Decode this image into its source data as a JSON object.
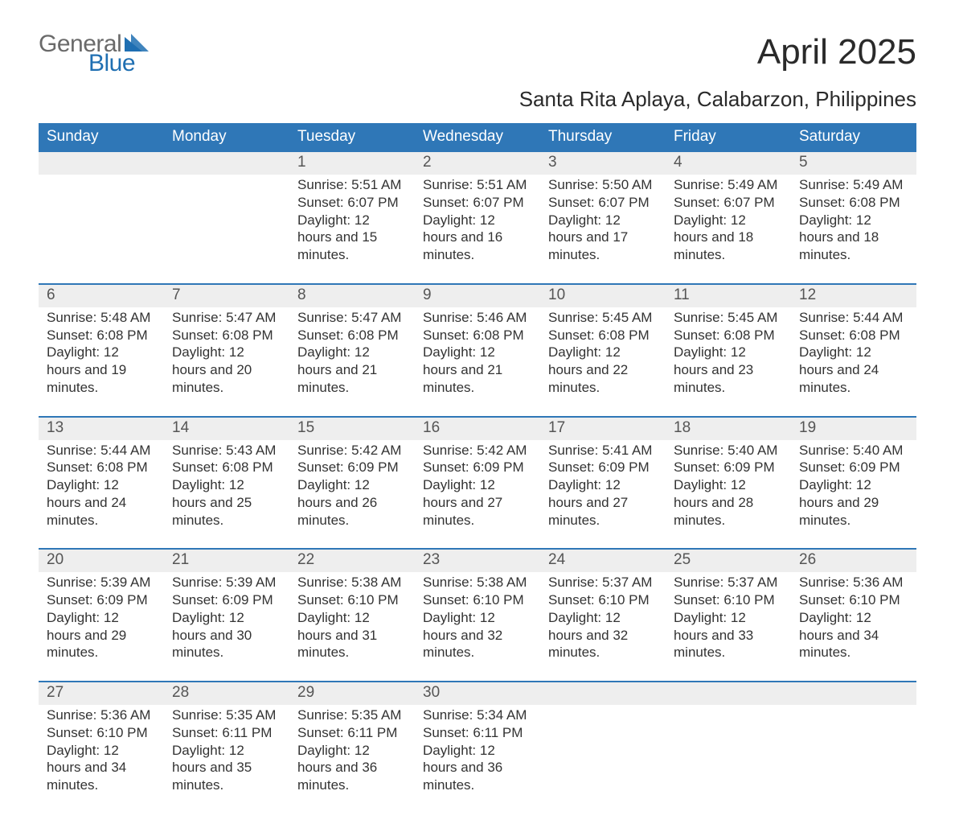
{
  "brand": {
    "line1": "General",
    "line2": "Blue",
    "accent_color": "#1f6fb2"
  },
  "title": "April 2025",
  "location": "Santa Rita Aplaya, Calabarzon, Philippines",
  "calendar": {
    "header_bg": "#2f77b7",
    "header_fg": "#ffffff",
    "daynum_bg": "#eeeeee",
    "sep_color": "#2f77b7",
    "text_color": "#333333",
    "fontsize_header": 19,
    "fontsize_daynum": 19,
    "fontsize_body": 17,
    "days_of_week": [
      "Sunday",
      "Monday",
      "Tuesday",
      "Wednesday",
      "Thursday",
      "Friday",
      "Saturday"
    ],
    "weeks": [
      [
        null,
        null,
        {
          "n": "1",
          "sunrise": "5:51 AM",
          "sunset": "6:07 PM",
          "daylight": "12 hours and 15 minutes."
        },
        {
          "n": "2",
          "sunrise": "5:51 AM",
          "sunset": "6:07 PM",
          "daylight": "12 hours and 16 minutes."
        },
        {
          "n": "3",
          "sunrise": "5:50 AM",
          "sunset": "6:07 PM",
          "daylight": "12 hours and 17 minutes."
        },
        {
          "n": "4",
          "sunrise": "5:49 AM",
          "sunset": "6:07 PM",
          "daylight": "12 hours and 18 minutes."
        },
        {
          "n": "5",
          "sunrise": "5:49 AM",
          "sunset": "6:08 PM",
          "daylight": "12 hours and 18 minutes."
        }
      ],
      [
        {
          "n": "6",
          "sunrise": "5:48 AM",
          "sunset": "6:08 PM",
          "daylight": "12 hours and 19 minutes."
        },
        {
          "n": "7",
          "sunrise": "5:47 AM",
          "sunset": "6:08 PM",
          "daylight": "12 hours and 20 minutes."
        },
        {
          "n": "8",
          "sunrise": "5:47 AM",
          "sunset": "6:08 PM",
          "daylight": "12 hours and 21 minutes."
        },
        {
          "n": "9",
          "sunrise": "5:46 AM",
          "sunset": "6:08 PM",
          "daylight": "12 hours and 21 minutes."
        },
        {
          "n": "10",
          "sunrise": "5:45 AM",
          "sunset": "6:08 PM",
          "daylight": "12 hours and 22 minutes."
        },
        {
          "n": "11",
          "sunrise": "5:45 AM",
          "sunset": "6:08 PM",
          "daylight": "12 hours and 23 minutes."
        },
        {
          "n": "12",
          "sunrise": "5:44 AM",
          "sunset": "6:08 PM",
          "daylight": "12 hours and 24 minutes."
        }
      ],
      [
        {
          "n": "13",
          "sunrise": "5:44 AM",
          "sunset": "6:08 PM",
          "daylight": "12 hours and 24 minutes."
        },
        {
          "n": "14",
          "sunrise": "5:43 AM",
          "sunset": "6:08 PM",
          "daylight": "12 hours and 25 minutes."
        },
        {
          "n": "15",
          "sunrise": "5:42 AM",
          "sunset": "6:09 PM",
          "daylight": "12 hours and 26 minutes."
        },
        {
          "n": "16",
          "sunrise": "5:42 AM",
          "sunset": "6:09 PM",
          "daylight": "12 hours and 27 minutes."
        },
        {
          "n": "17",
          "sunrise": "5:41 AM",
          "sunset": "6:09 PM",
          "daylight": "12 hours and 27 minutes."
        },
        {
          "n": "18",
          "sunrise": "5:40 AM",
          "sunset": "6:09 PM",
          "daylight": "12 hours and 28 minutes."
        },
        {
          "n": "19",
          "sunrise": "5:40 AM",
          "sunset": "6:09 PM",
          "daylight": "12 hours and 29 minutes."
        }
      ],
      [
        {
          "n": "20",
          "sunrise": "5:39 AM",
          "sunset": "6:09 PM",
          "daylight": "12 hours and 29 minutes."
        },
        {
          "n": "21",
          "sunrise": "5:39 AM",
          "sunset": "6:09 PM",
          "daylight": "12 hours and 30 minutes."
        },
        {
          "n": "22",
          "sunrise": "5:38 AM",
          "sunset": "6:10 PM",
          "daylight": "12 hours and 31 minutes."
        },
        {
          "n": "23",
          "sunrise": "5:38 AM",
          "sunset": "6:10 PM",
          "daylight": "12 hours and 32 minutes."
        },
        {
          "n": "24",
          "sunrise": "5:37 AM",
          "sunset": "6:10 PM",
          "daylight": "12 hours and 32 minutes."
        },
        {
          "n": "25",
          "sunrise": "5:37 AM",
          "sunset": "6:10 PM",
          "daylight": "12 hours and 33 minutes."
        },
        {
          "n": "26",
          "sunrise": "5:36 AM",
          "sunset": "6:10 PM",
          "daylight": "12 hours and 34 minutes."
        }
      ],
      [
        {
          "n": "27",
          "sunrise": "5:36 AM",
          "sunset": "6:10 PM",
          "daylight": "12 hours and 34 minutes."
        },
        {
          "n": "28",
          "sunrise": "5:35 AM",
          "sunset": "6:11 PM",
          "daylight": "12 hours and 35 minutes."
        },
        {
          "n": "29",
          "sunrise": "5:35 AM",
          "sunset": "6:11 PM",
          "daylight": "12 hours and 36 minutes."
        },
        {
          "n": "30",
          "sunrise": "5:34 AM",
          "sunset": "6:11 PM",
          "daylight": "12 hours and 36 minutes."
        },
        null,
        null,
        null
      ]
    ],
    "labels": {
      "sunrise": "Sunrise:",
      "sunset": "Sunset:",
      "daylight": "Daylight:"
    }
  }
}
